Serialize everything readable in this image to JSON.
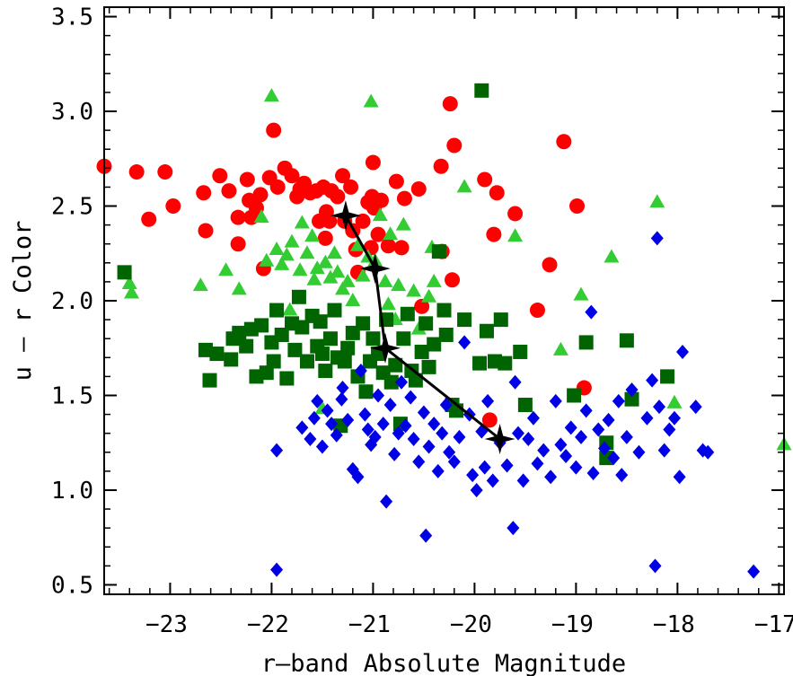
{
  "chart_data": {
    "type": "scatter",
    "xlabel": "r–band Absolute Magnitude",
    "ylabel": "u – r Color",
    "xlim": [
      -23.65,
      -16.95
    ],
    "ylim": [
      0.45,
      3.55
    ],
    "xticks": [
      -23,
      -22,
      -21,
      -20,
      -19,
      -18,
      -17
    ],
    "xtick_labels": [
      "−23",
      "−22",
      "−21",
      "−20",
      "−19",
      "−18",
      "−17"
    ],
    "yticks": [
      0.5,
      1.0,
      1.5,
      2.0,
      2.5,
      3.0,
      3.5
    ],
    "ytick_labels": [
      "0.5",
      "1.0",
      "1.5",
      "2.0",
      "2.5",
      "3.0",
      "3.5"
    ],
    "grid": false,
    "series": [
      {
        "marker": "circle",
        "color": "#ff0000",
        "points": [
          [
            -23.65,
            2.71
          ],
          [
            -23.33,
            2.68
          ],
          [
            -23.21,
            2.43
          ],
          [
            -23.05,
            2.68
          ],
          [
            -22.97,
            2.5
          ],
          [
            -22.67,
            2.57
          ],
          [
            -22.65,
            2.37
          ],
          [
            -22.51,
            2.66
          ],
          [
            -22.42,
            2.58
          ],
          [
            -22.33,
            2.44
          ],
          [
            -22.33,
            2.3
          ],
          [
            -22.24,
            2.64
          ],
          [
            -22.22,
            2.53
          ],
          [
            -22.2,
            2.44
          ],
          [
            -22.15,
            2.49
          ],
          [
            -22.11,
            2.56
          ],
          [
            -22.08,
            2.17
          ],
          [
            -22.02,
            2.65
          ],
          [
            -21.98,
            2.9
          ],
          [
            -21.94,
            2.6
          ],
          [
            -21.87,
            2.7
          ],
          [
            -21.8,
            2.66
          ],
          [
            -21.75,
            2.55
          ],
          [
            -21.72,
            2.59
          ],
          [
            -21.68,
            2.62
          ],
          [
            -21.62,
            2.57
          ],
          [
            -21.56,
            2.58
          ],
          [
            -21.53,
            2.42
          ],
          [
            -21.49,
            2.6
          ],
          [
            -21.47,
            2.33
          ],
          [
            -21.46,
            2.47
          ],
          [
            -21.43,
            2.42
          ],
          [
            -21.41,
            2.58
          ],
          [
            -21.35,
            2.55
          ],
          [
            -21.3,
            2.66
          ],
          [
            -21.28,
            2.42
          ],
          [
            -21.22,
            2.6
          ],
          [
            -21.2,
            2.37
          ],
          [
            -21.17,
            2.27
          ],
          [
            -21.15,
            2.15
          ],
          [
            -21.1,
            2.42
          ],
          [
            -21.05,
            2.52
          ],
          [
            -21.02,
            2.28
          ],
          [
            -21.01,
            2.55
          ],
          [
            -21.0,
            2.73
          ],
          [
            -20.99,
            2.49
          ],
          [
            -20.95,
            2.35
          ],
          [
            -20.92,
            2.53
          ],
          [
            -20.85,
            2.29
          ],
          [
            -20.77,
            2.63
          ],
          [
            -20.72,
            2.28
          ],
          [
            -20.69,
            2.54
          ],
          [
            -20.55,
            2.59
          ],
          [
            -20.52,
            1.97
          ],
          [
            -20.33,
            2.71
          ],
          [
            -20.32,
            2.26
          ],
          [
            -20.24,
            3.04
          ],
          [
            -20.22,
            2.11
          ],
          [
            -20.2,
            2.82
          ],
          [
            -19.9,
            2.64
          ],
          [
            -19.85,
            1.37
          ],
          [
            -19.81,
            2.35
          ],
          [
            -19.78,
            2.57
          ],
          [
            -19.6,
            2.46
          ],
          [
            -19.38,
            1.95
          ],
          [
            -19.26,
            2.19
          ],
          [
            -19.12,
            2.84
          ],
          [
            -18.99,
            2.5
          ],
          [
            -18.92,
            1.54
          ]
        ]
      },
      {
        "marker": "triangle",
        "color": "#33cc33",
        "points": [
          [
            -23.4,
            2.09
          ],
          [
            -23.38,
            2.04
          ],
          [
            -22.7,
            2.08
          ],
          [
            -22.45,
            2.16
          ],
          [
            -22.32,
            2.06
          ],
          [
            -22.1,
            2.44
          ],
          [
            -22.05,
            2.21
          ],
          [
            -22.0,
            3.08
          ],
          [
            -21.95,
            2.27
          ],
          [
            -21.9,
            2.19
          ],
          [
            -21.85,
            2.24
          ],
          [
            -21.82,
            1.95
          ],
          [
            -21.8,
            2.31
          ],
          [
            -21.72,
            2.16
          ],
          [
            -21.7,
            2.41
          ],
          [
            -21.65,
            2.25
          ],
          [
            -21.6,
            2.34
          ],
          [
            -21.58,
            2.11
          ],
          [
            -21.55,
            2.17
          ],
          [
            -21.5,
            1.43
          ],
          [
            -21.47,
            2.2
          ],
          [
            -21.42,
            2.12
          ],
          [
            -21.38,
            2.25
          ],
          [
            -21.35,
            2.15
          ],
          [
            -21.3,
            2.06
          ],
          [
            -21.25,
            2.1
          ],
          [
            -21.2,
            2.0
          ],
          [
            -21.15,
            2.29
          ],
          [
            -21.1,
            2.13
          ],
          [
            -21.05,
            2.23
          ],
          [
            -21.02,
            3.05
          ],
          [
            -20.98,
            2.21
          ],
          [
            -20.93,
            2.45
          ],
          [
            -20.88,
            2.1
          ],
          [
            -20.85,
            1.98
          ],
          [
            -20.83,
            2.35
          ],
          [
            -20.78,
            1.9
          ],
          [
            -20.75,
            2.08
          ],
          [
            -20.7,
            2.4
          ],
          [
            -20.6,
            2.05
          ],
          [
            -20.55,
            1.85
          ],
          [
            -20.45,
            2.02
          ],
          [
            -20.42,
            2.28
          ],
          [
            -20.4,
            2.1
          ],
          [
            -20.1,
            2.6
          ],
          [
            -19.6,
            2.34
          ],
          [
            -19.15,
            1.74
          ],
          [
            -18.95,
            2.03
          ],
          [
            -18.65,
            2.23
          ],
          [
            -18.2,
            2.52
          ],
          [
            -18.03,
            1.46
          ],
          [
            -16.95,
            1.24
          ]
        ]
      },
      {
        "marker": "square",
        "color": "#006400",
        "points": [
          [
            -23.45,
            2.15
          ],
          [
            -22.65,
            1.74
          ],
          [
            -22.61,
            1.58
          ],
          [
            -22.54,
            1.72
          ],
          [
            -22.4,
            1.69
          ],
          [
            -22.38,
            1.8
          ],
          [
            -22.32,
            1.83
          ],
          [
            -22.25,
            1.76
          ],
          [
            -22.2,
            1.85
          ],
          [
            -22.15,
            1.6
          ],
          [
            -22.1,
            1.87
          ],
          [
            -22.05,
            1.62
          ],
          [
            -22.0,
            1.78
          ],
          [
            -21.98,
            1.68
          ],
          [
            -21.95,
            1.95
          ],
          [
            -21.9,
            1.82
          ],
          [
            -21.85,
            1.59
          ],
          [
            -21.8,
            1.88
          ],
          [
            -21.77,
            1.74
          ],
          [
            -21.73,
            2.02
          ],
          [
            -21.7,
            1.86
          ],
          [
            -21.65,
            1.68
          ],
          [
            -21.6,
            1.92
          ],
          [
            -21.55,
            1.76
          ],
          [
            -21.52,
            1.89
          ],
          [
            -21.5,
            1.72
          ],
          [
            -21.47,
            1.63
          ],
          [
            -21.42,
            1.8
          ],
          [
            -21.38,
            1.95
          ],
          [
            -21.35,
            1.7
          ],
          [
            -21.32,
            1.34
          ],
          [
            -21.28,
            1.68
          ],
          [
            -21.25,
            1.75
          ],
          [
            -21.2,
            1.83
          ],
          [
            -21.15,
            1.6
          ],
          [
            -21.1,
            1.88
          ],
          [
            -21.07,
            1.52
          ],
          [
            -21.03,
            1.68
          ],
          [
            -21.0,
            1.8
          ],
          [
            -20.95,
            1.72
          ],
          [
            -20.9,
            1.62
          ],
          [
            -20.87,
            1.9
          ],
          [
            -20.82,
            1.57
          ],
          [
            -20.78,
            1.66
          ],
          [
            -20.73,
            1.35
          ],
          [
            -20.7,
            1.8
          ],
          [
            -20.66,
            1.93
          ],
          [
            -20.62,
            1.63
          ],
          [
            -20.58,
            1.58
          ],
          [
            -20.52,
            1.73
          ],
          [
            -20.48,
            1.88
          ],
          [
            -20.45,
            1.65
          ],
          [
            -20.4,
            1.77
          ],
          [
            -20.35,
            2.26
          ],
          [
            -20.3,
            1.95
          ],
          [
            -20.28,
            1.82
          ],
          [
            -20.22,
            1.45
          ],
          [
            -20.18,
            1.42
          ],
          [
            -20.1,
            1.9
          ],
          [
            -19.95,
            1.67
          ],
          [
            -19.93,
            3.11
          ],
          [
            -19.88,
            1.84
          ],
          [
            -19.8,
            1.68
          ],
          [
            -19.74,
            1.9
          ],
          [
            -19.7,
            1.67
          ],
          [
            -19.55,
            1.73
          ],
          [
            -19.5,
            1.45
          ],
          [
            -19.02,
            1.5
          ],
          [
            -18.9,
            1.78
          ],
          [
            -18.7,
            1.25
          ],
          [
            -18.7,
            1.17
          ],
          [
            -18.5,
            1.79
          ],
          [
            -18.45,
            1.48
          ],
          [
            -18.1,
            1.6
          ]
        ]
      },
      {
        "marker": "diamond",
        "color": "#0000e6",
        "points": [
          [
            -21.95,
            1.21
          ],
          [
            -21.95,
            0.58
          ],
          [
            -21.7,
            1.33
          ],
          [
            -21.62,
            1.27
          ],
          [
            -21.58,
            1.38
          ],
          [
            -21.55,
            1.47
          ],
          [
            -21.5,
            1.23
          ],
          [
            -21.45,
            1.42
          ],
          [
            -21.41,
            1.35
          ],
          [
            -21.36,
            1.29
          ],
          [
            -21.31,
            1.48
          ],
          [
            -21.3,
            1.54
          ],
          [
            -21.25,
            1.37
          ],
          [
            -21.2,
            1.11
          ],
          [
            -21.15,
            1.07
          ],
          [
            -21.12,
            1.63
          ],
          [
            -21.08,
            1.4
          ],
          [
            -21.05,
            1.32
          ],
          [
            -21.02,
            1.24
          ],
          [
            -20.98,
            1.28
          ],
          [
            -20.95,
            1.5
          ],
          [
            -20.9,
            1.35
          ],
          [
            -20.87,
            0.94
          ],
          [
            -20.83,
            1.45
          ],
          [
            -20.79,
            1.19
          ],
          [
            -20.75,
            1.3
          ],
          [
            -20.72,
            1.57
          ],
          [
            -20.68,
            1.34
          ],
          [
            -20.63,
            1.49
          ],
          [
            -20.6,
            1.27
          ],
          [
            -20.55,
            1.15
          ],
          [
            -20.5,
            1.41
          ],
          [
            -20.48,
            0.76
          ],
          [
            -20.45,
            1.23
          ],
          [
            -20.4,
            1.35
          ],
          [
            -20.36,
            1.1
          ],
          [
            -20.32,
            1.3
          ],
          [
            -20.28,
            1.45
          ],
          [
            -20.25,
            1.2
          ],
          [
            -20.2,
            1.15
          ],
          [
            -20.15,
            1.28
          ],
          [
            -20.1,
            1.78
          ],
          [
            -20.05,
            1.4
          ],
          [
            -20.02,
            1.08
          ],
          [
            -19.98,
            1.0
          ],
          [
            -19.93,
            1.31
          ],
          [
            -19.9,
            1.12
          ],
          [
            -19.87,
            1.47
          ],
          [
            -19.82,
            1.05
          ],
          [
            -19.75,
            1.25
          ],
          [
            -19.68,
            1.13
          ],
          [
            -19.62,
            0.8
          ],
          [
            -19.6,
            1.57
          ],
          [
            -19.57,
            1.3
          ],
          [
            -19.52,
            1.05
          ],
          [
            -19.47,
            1.27
          ],
          [
            -19.42,
            1.38
          ],
          [
            -19.38,
            1.14
          ],
          [
            -19.32,
            1.21
          ],
          [
            -19.25,
            1.07
          ],
          [
            -19.2,
            1.47
          ],
          [
            -19.15,
            1.24
          ],
          [
            -19.1,
            1.18
          ],
          [
            -19.05,
            1.33
          ],
          [
            -19.0,
            1.12
          ],
          [
            -18.95,
            1.28
          ],
          [
            -18.9,
            1.42
          ],
          [
            -18.85,
            1.94
          ],
          [
            -18.83,
            1.09
          ],
          [
            -18.78,
            1.32
          ],
          [
            -18.72,
            1.22
          ],
          [
            -18.68,
            1.37
          ],
          [
            -18.63,
            1.17
          ],
          [
            -18.58,
            1.47
          ],
          [
            -18.55,
            1.08
          ],
          [
            -18.5,
            1.28
          ],
          [
            -18.45,
            1.53
          ],
          [
            -18.38,
            1.2
          ],
          [
            -18.3,
            1.38
          ],
          [
            -18.25,
            1.58
          ],
          [
            -18.22,
            0.6
          ],
          [
            -18.2,
            2.33
          ],
          [
            -18.18,
            1.44
          ],
          [
            -18.13,
            1.21
          ],
          [
            -18.08,
            1.32
          ],
          [
            -18.03,
            1.38
          ],
          [
            -17.98,
            1.07
          ],
          [
            -17.95,
            1.73
          ],
          [
            -17.82,
            1.44
          ],
          [
            -17.75,
            1.21
          ],
          [
            -17.7,
            1.2
          ],
          [
            -17.25,
            0.57
          ]
        ]
      },
      {
        "marker": "star",
        "color": "#000000",
        "line": true,
        "points": [
          [
            -21.27,
            2.45
          ],
          [
            -20.98,
            2.17
          ],
          [
            -20.88,
            1.75
          ],
          [
            -19.75,
            1.27
          ]
        ]
      }
    ]
  }
}
